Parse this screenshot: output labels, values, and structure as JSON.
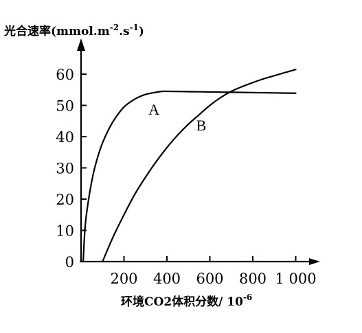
{
  "chart_data": {
    "type": "line",
    "ylabel": "光合速率(mmol.m-2.s-1)",
    "ylabel_parts": {
      "prefix": "光合速率(mmol.m",
      "sup1": "-2",
      "mid": ".s",
      "sup2": "-1",
      "suffix": ")"
    },
    "xlabel": "环境CO2体积分数/ 10-6",
    "xlabel_parts": {
      "base": "环境CO2体积分数/ 10",
      "sup": "-6"
    },
    "x_ticks": [
      {
        "value": 200,
        "label": "200"
      },
      {
        "value": 400,
        "label": "400"
      },
      {
        "value": 600,
        "label": "600"
      },
      {
        "value": 800,
        "label": "800"
      },
      {
        "value": 1000,
        "label": "1 000"
      }
    ],
    "y_ticks": [
      {
        "value": 0,
        "label": "0"
      },
      {
        "value": 10,
        "label": "10"
      },
      {
        "value": 20,
        "label": "20"
      },
      {
        "value": 30,
        "label": "30"
      },
      {
        "value": 40,
        "label": "40"
      },
      {
        "value": 50,
        "label": "50"
      },
      {
        "value": 60,
        "label": "60"
      }
    ],
    "xlim": [
      0,
      1050
    ],
    "ylim": [
      0,
      68
    ],
    "grid": false,
    "series": [
      {
        "name": "A",
        "x": [
          10,
          20,
          40,
          60,
          80,
          100,
          130,
          160,
          200,
          250,
          300,
          350,
          380,
          400,
          500,
          600,
          700,
          800,
          900,
          1000
        ],
        "y": [
          0,
          12,
          22,
          29,
          34,
          38,
          42.5,
          46,
          49.5,
          52,
          53.5,
          54.2,
          54.5,
          54.5,
          54.4,
          54.3,
          54.2,
          54.1,
          54.0,
          53.9
        ]
      },
      {
        "name": "B",
        "x": [
          100,
          150,
          200,
          250,
          300,
          350,
          400,
          450,
          500,
          550,
          600,
          650,
          700,
          750,
          800,
          850,
          900,
          950,
          1000
        ],
        "y": [
          0,
          8,
          15,
          21.5,
          27,
          32,
          36.5,
          40.5,
          44,
          47,
          50,
          52.5,
          54.5,
          56,
          57.3,
          58.5,
          59.5,
          60.5,
          61.5
        ]
      }
    ],
    "curve_labels": [
      {
        "series": "A",
        "text": "A",
        "x": 340,
        "y": 47
      },
      {
        "series": "B",
        "text": "B",
        "x": 560,
        "y": 42
      }
    ]
  }
}
